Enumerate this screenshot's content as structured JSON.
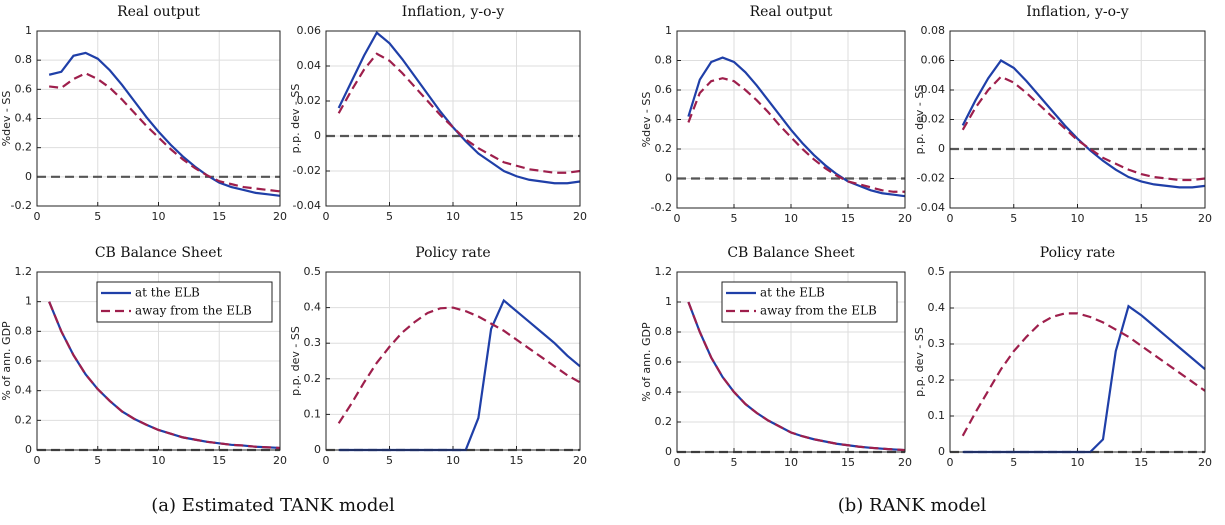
{
  "chart_data": [
    {
      "type": "line",
      "title": "Real output",
      "ylabel": "%dev - SS",
      "x": [
        1,
        2,
        3,
        4,
        5,
        6,
        7,
        8,
        9,
        10,
        11,
        12,
        13,
        14,
        15,
        16,
        17,
        18,
        19,
        20
      ],
      "xlim": [
        0,
        20
      ],
      "xticks": [
        0,
        5,
        10,
        15,
        20
      ],
      "ylim": [
        -0.2,
        1
      ],
      "yticks": [
        -0.2,
        0,
        0.2,
        0.4,
        0.6,
        0.8,
        1
      ],
      "grid": true,
      "zero_line": true,
      "series": [
        {
          "color": "#1f3fa8",
          "dash": "solid",
          "values": [
            0.7,
            0.72,
            0.83,
            0.85,
            0.81,
            0.73,
            0.63,
            0.52,
            0.41,
            0.31,
            0.22,
            0.14,
            0.07,
            0.01,
            -0.04,
            -0.07,
            -0.09,
            -0.11,
            -0.12,
            -0.13
          ]
        },
        {
          "color": "#9e1f4c",
          "dash": "dashed",
          "values": [
            0.62,
            0.61,
            0.67,
            0.71,
            0.67,
            0.61,
            0.53,
            0.44,
            0.35,
            0.27,
            0.19,
            0.12,
            0.06,
            0.01,
            -0.03,
            -0.05,
            -0.07,
            -0.08,
            -0.09,
            -0.1
          ]
        }
      ]
    },
    {
      "type": "line",
      "title": "Inflation, y-o-y",
      "ylabel": "p.p. dev - SS",
      "x": [
        1,
        2,
        3,
        4,
        5,
        6,
        7,
        8,
        9,
        10,
        11,
        12,
        13,
        14,
        15,
        16,
        17,
        18,
        19,
        20
      ],
      "xlim": [
        0,
        20
      ],
      "xticks": [
        0,
        5,
        10,
        15,
        20
      ],
      "ylim": [
        -0.04,
        0.06
      ],
      "yticks": [
        -0.04,
        -0.02,
        0,
        0.02,
        0.04,
        0.06
      ],
      "grid": true,
      "zero_line": true,
      "series": [
        {
          "color": "#1f3fa8",
          "dash": "solid",
          "values": [
            0.016,
            0.031,
            0.046,
            0.059,
            0.053,
            0.044,
            0.034,
            0.024,
            0.014,
            0.005,
            -0.003,
            -0.01,
            -0.015,
            -0.02,
            -0.023,
            -0.025,
            -0.026,
            -0.027,
            -0.027,
            -0.026
          ]
        },
        {
          "color": "#9e1f4c",
          "dash": "dashed",
          "values": [
            0.013,
            0.026,
            0.038,
            0.047,
            0.043,
            0.036,
            0.028,
            0.02,
            0.012,
            0.005,
            -0.002,
            -0.007,
            -0.011,
            -0.015,
            -0.017,
            -0.019,
            -0.02,
            -0.021,
            -0.021,
            -0.02
          ]
        }
      ]
    },
    {
      "type": "line",
      "title": "CB Balance Sheet",
      "ylabel": "% of ann. GDP",
      "x": [
        1,
        2,
        3,
        4,
        5,
        6,
        7,
        8,
        9,
        10,
        11,
        12,
        13,
        14,
        15,
        16,
        17,
        18,
        19,
        20
      ],
      "xlim": [
        0,
        20
      ],
      "xticks": [
        0,
        5,
        10,
        15,
        20
      ],
      "ylim": [
        0,
        1.2
      ],
      "yticks": [
        0,
        0.2,
        0.4,
        0.6,
        0.8,
        1,
        1.2
      ],
      "grid": true,
      "zero_line": true,
      "legend": "upper right",
      "series": [
        {
          "name": "at the ELB",
          "color": "#1f3fa8",
          "dash": "solid",
          "values": [
            1.0,
            0.8,
            0.64,
            0.51,
            0.41,
            0.33,
            0.26,
            0.21,
            0.17,
            0.135,
            0.11,
            0.085,
            0.07,
            0.055,
            0.045,
            0.035,
            0.03,
            0.022,
            0.018,
            0.014
          ]
        },
        {
          "name": "away from the ELB",
          "color": "#9e1f4c",
          "dash": "dashed",
          "values": [
            1.0,
            0.8,
            0.64,
            0.51,
            0.41,
            0.33,
            0.26,
            0.21,
            0.17,
            0.135,
            0.11,
            0.085,
            0.07,
            0.055,
            0.045,
            0.035,
            0.03,
            0.022,
            0.018,
            0.014
          ]
        }
      ]
    },
    {
      "type": "line",
      "title": "Policy rate",
      "ylabel": "p.p. dev - SS",
      "x": [
        1,
        2,
        3,
        4,
        5,
        6,
        7,
        8,
        9,
        10,
        11,
        12,
        13,
        14,
        15,
        16,
        17,
        18,
        19,
        20
      ],
      "xlim": [
        0,
        20
      ],
      "xticks": [
        0,
        5,
        10,
        15,
        20
      ],
      "ylim": [
        0,
        0.5
      ],
      "yticks": [
        0,
        0.1,
        0.2,
        0.3,
        0.4,
        0.5
      ],
      "grid": true,
      "zero_line": true,
      "series": [
        {
          "color": "#1f3fa8",
          "dash": "solid",
          "values": [
            0,
            0,
            0,
            0,
            0,
            0,
            0,
            0,
            0,
            0,
            0,
            0.09,
            0.34,
            0.42,
            0.39,
            0.36,
            0.33,
            0.3,
            0.265,
            0.235
          ]
        },
        {
          "color": "#9e1f4c",
          "dash": "dashed",
          "values": [
            0.075,
            0.13,
            0.19,
            0.245,
            0.29,
            0.33,
            0.36,
            0.385,
            0.398,
            0.4,
            0.39,
            0.375,
            0.355,
            0.335,
            0.31,
            0.285,
            0.26,
            0.235,
            0.21,
            0.19
          ]
        }
      ]
    },
    {
      "type": "line",
      "title": "Real output",
      "ylabel": "%dev - SS",
      "x": [
        1,
        2,
        3,
        4,
        5,
        6,
        7,
        8,
        9,
        10,
        11,
        12,
        13,
        14,
        15,
        16,
        17,
        18,
        19,
        20
      ],
      "xlim": [
        0,
        20
      ],
      "xticks": [
        0,
        5,
        10,
        15,
        20
      ],
      "ylim": [
        -0.2,
        1
      ],
      "yticks": [
        -0.2,
        0,
        0.2,
        0.4,
        0.6,
        0.8,
        1
      ],
      "grid": true,
      "zero_line": true,
      "series": [
        {
          "color": "#1f3fa8",
          "dash": "solid",
          "values": [
            0.42,
            0.67,
            0.79,
            0.82,
            0.79,
            0.72,
            0.63,
            0.53,
            0.43,
            0.33,
            0.24,
            0.16,
            0.09,
            0.03,
            -0.02,
            -0.05,
            -0.08,
            -0.1,
            -0.11,
            -0.12
          ]
        },
        {
          "color": "#9e1f4c",
          "dash": "dashed",
          "values": [
            0.38,
            0.58,
            0.66,
            0.68,
            0.66,
            0.6,
            0.53,
            0.45,
            0.36,
            0.28,
            0.2,
            0.13,
            0.07,
            0.02,
            -0.02,
            -0.04,
            -0.06,
            -0.08,
            -0.09,
            -0.09
          ]
        }
      ]
    },
    {
      "type": "line",
      "title": "Inflation, y-o-y",
      "ylabel": "p.p. dev - SS",
      "x": [
        1,
        2,
        3,
        4,
        5,
        6,
        7,
        8,
        9,
        10,
        11,
        12,
        13,
        14,
        15,
        16,
        17,
        18,
        19,
        20
      ],
      "xlim": [
        0,
        20
      ],
      "xticks": [
        0,
        5,
        10,
        15,
        20
      ],
      "ylim": [
        -0.04,
        0.08
      ],
      "yticks": [
        -0.04,
        -0.02,
        0,
        0.02,
        0.04,
        0.06,
        0.08
      ],
      "grid": true,
      "zero_line": true,
      "series": [
        {
          "color": "#1f3fa8",
          "dash": "solid",
          "values": [
            0.016,
            0.033,
            0.048,
            0.06,
            0.055,
            0.046,
            0.036,
            0.026,
            0.016,
            0.007,
            -0.001,
            -0.008,
            -0.014,
            -0.019,
            -0.022,
            -0.024,
            -0.025,
            -0.026,
            -0.026,
            -0.025
          ]
        },
        {
          "color": "#9e1f4c",
          "dash": "dashed",
          "values": [
            0.013,
            0.028,
            0.04,
            0.049,
            0.045,
            0.038,
            0.03,
            0.022,
            0.014,
            0.006,
            0.0,
            -0.006,
            -0.01,
            -0.014,
            -0.017,
            -0.019,
            -0.02,
            -0.021,
            -0.021,
            -0.02
          ]
        }
      ]
    },
    {
      "type": "line",
      "title": "CB Balance Sheet",
      "ylabel": "% of ann. GDP",
      "x": [
        1,
        2,
        3,
        4,
        5,
        6,
        7,
        8,
        9,
        10,
        11,
        12,
        13,
        14,
        15,
        16,
        17,
        18,
        19,
        20
      ],
      "xlim": [
        0,
        20
      ],
      "xticks": [
        0,
        5,
        10,
        15,
        20
      ],
      "ylim": [
        0,
        1.2
      ],
      "yticks": [
        0,
        0.2,
        0.4,
        0.6,
        0.8,
        1,
        1.2
      ],
      "grid": true,
      "zero_line": true,
      "legend": "upper right",
      "series": [
        {
          "name": "at the ELB",
          "color": "#1f3fa8",
          "dash": "solid",
          "values": [
            1.0,
            0.8,
            0.63,
            0.5,
            0.4,
            0.32,
            0.26,
            0.21,
            0.17,
            0.13,
            0.105,
            0.085,
            0.07,
            0.055,
            0.045,
            0.035,
            0.028,
            0.022,
            0.017,
            0.013
          ]
        },
        {
          "name": "away from the ELB",
          "color": "#9e1f4c",
          "dash": "dashed",
          "values": [
            1.0,
            0.8,
            0.63,
            0.5,
            0.4,
            0.32,
            0.26,
            0.21,
            0.17,
            0.13,
            0.105,
            0.085,
            0.07,
            0.055,
            0.045,
            0.035,
            0.028,
            0.022,
            0.017,
            0.013
          ]
        }
      ]
    },
    {
      "type": "line",
      "title": "Policy rate",
      "ylabel": "p.p. dev - SS",
      "x": [
        1,
        2,
        3,
        4,
        5,
        6,
        7,
        8,
        9,
        10,
        11,
        12,
        13,
        14,
        15,
        16,
        17,
        18,
        19,
        20
      ],
      "xlim": [
        0,
        20
      ],
      "xticks": [
        0,
        5,
        10,
        15,
        20
      ],
      "ylim": [
        0,
        0.5
      ],
      "yticks": [
        0,
        0.1,
        0.2,
        0.3,
        0.4,
        0.5
      ],
      "grid": true,
      "zero_line": true,
      "series": [
        {
          "color": "#1f3fa8",
          "dash": "solid",
          "values": [
            0,
            0,
            0,
            0,
            0,
            0,
            0,
            0,
            0,
            0,
            0,
            0.035,
            0.28,
            0.405,
            0.38,
            0.35,
            0.32,
            0.29,
            0.26,
            0.23
          ]
        },
        {
          "color": "#9e1f4c",
          "dash": "dashed",
          "values": [
            0.045,
            0.11,
            0.17,
            0.23,
            0.28,
            0.32,
            0.355,
            0.375,
            0.385,
            0.385,
            0.375,
            0.36,
            0.34,
            0.32,
            0.295,
            0.27,
            0.245,
            0.22,
            0.195,
            0.17
          ]
        }
      ]
    }
  ],
  "captions": [
    "(a) Estimated TANK model",
    "(b) RANK model"
  ]
}
